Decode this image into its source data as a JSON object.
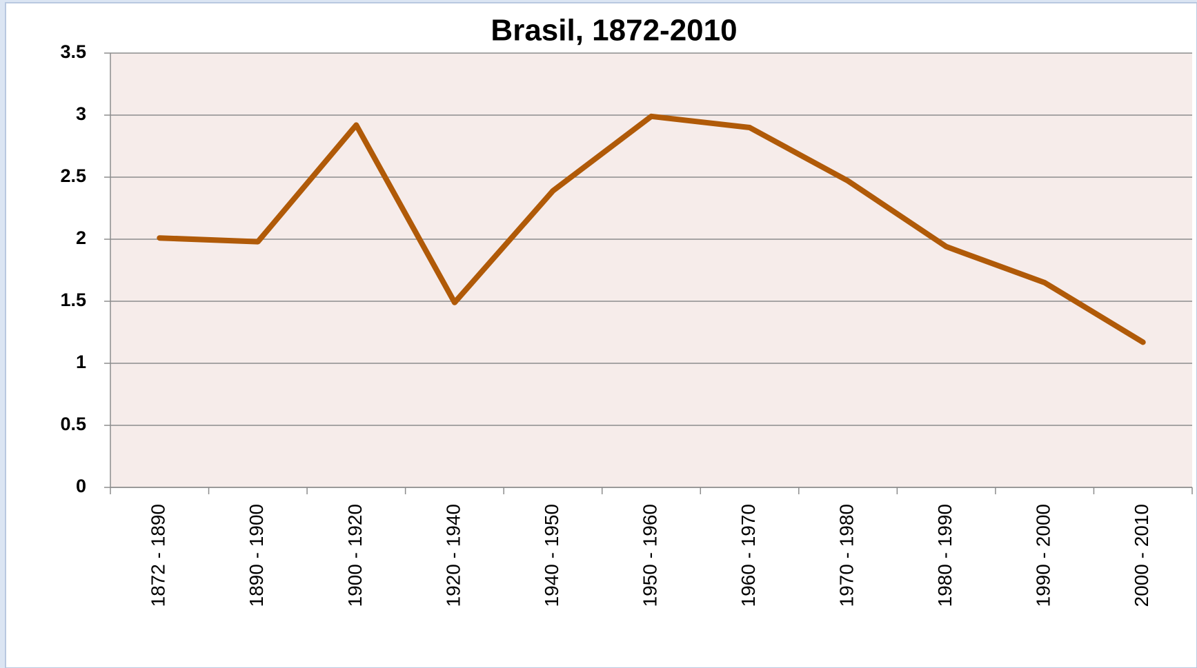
{
  "chart_data": {
    "type": "line",
    "title": "Brasil, 1872-2010",
    "categories": [
      "1872 - 1890",
      "1890 - 1900",
      "1900 - 1920",
      "1920 - 1940",
      "1940 - 1950",
      "1950 - 1960",
      "1960 - 1970",
      "1970 - 1980",
      "1980 - 1990",
      "1990 - 2000",
      "2000 - 2010"
    ],
    "series": [
      {
        "name": "Brasil",
        "color": "#b05a08",
        "values": [
          2.01,
          1.98,
          2.92,
          1.49,
          2.39,
          2.99,
          2.9,
          2.47,
          1.94,
          1.65,
          1.17
        ]
      }
    ],
    "ylim": [
      0,
      3.5
    ],
    "yticks": [
      0,
      0.5,
      1,
      1.5,
      2,
      2.5,
      3,
      3.5
    ],
    "grid": true,
    "legend": false
  }
}
